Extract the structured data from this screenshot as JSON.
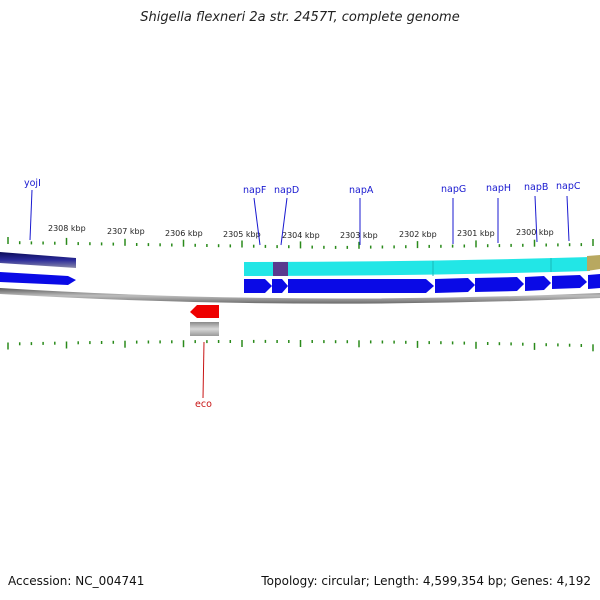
{
  "title": "Shigella flexneri 2a str. 2457T, complete genome",
  "footer": {
    "accession": "Accession: NC_004741",
    "topology": "Topology: circular; Length: 4,599,354 bp; Genes: 4,192"
  },
  "scale_labels": [
    "2308 kbp",
    "2307 kbp",
    "2306 kbp",
    "2305 kbp",
    "2304 kbp",
    "2303 kbp",
    "2302 kbp",
    "2301 kbp",
    "2300 kbp"
  ],
  "gene_labels_top": [
    "yojI",
    "napF",
    "napD",
    "napA",
    "napG",
    "napH",
    "napB",
    "napC"
  ],
  "gene_labels_bottom": [
    "eco"
  ],
  "colors": {
    "forward_gene": "#0a0ae6",
    "reverse_gene": "#ee0000",
    "cds_band": "#22e6e6",
    "dark_band": "#1a1a7a",
    "napD_band": "#5a3a8e",
    "backbone": "#8a8a8a",
    "tick": "#2a8a1a",
    "label_line_blue": "#1a1ad0",
    "label_line_red": "#c81414"
  }
}
